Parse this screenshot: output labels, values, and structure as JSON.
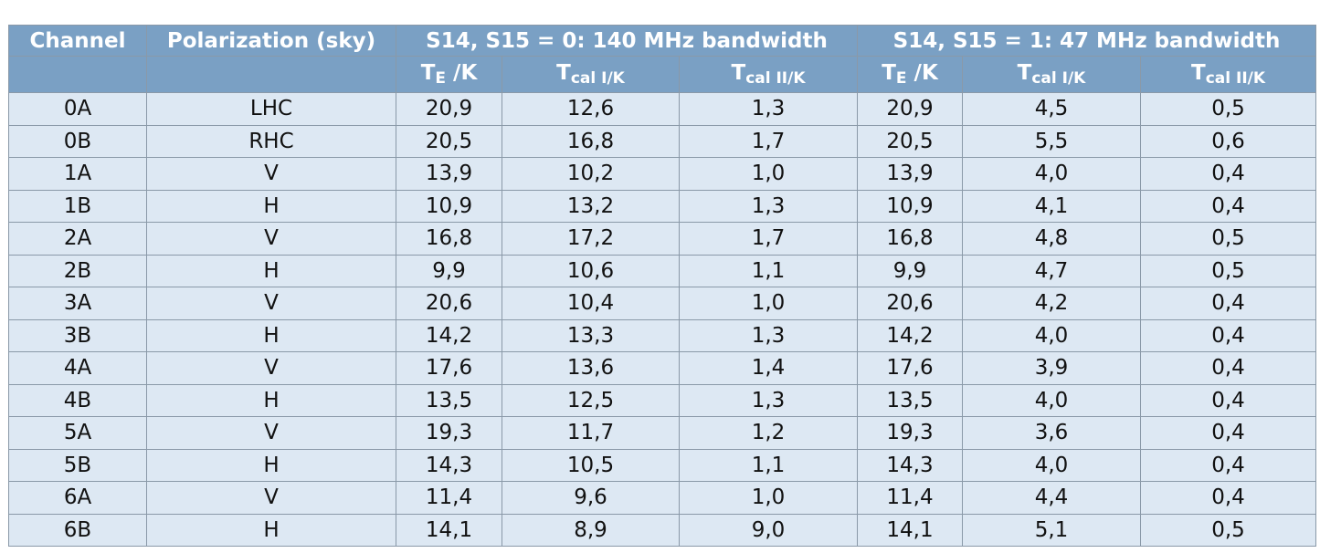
{
  "table": {
    "header": [
      "Channel",
      "Polarization (sky)",
      "S14, S15 = 0: 140 MHz bandwidth",
      "S14, S15 = 1: 47 MHz bandwidth"
    ],
    "subheader": [
      {
        "base": "T",
        "sub": "E",
        "suffix": " /K"
      },
      {
        "base": "T",
        "sub": "cal I/K"
      },
      {
        "base": "T",
        "sub": "cal II/K"
      },
      {
        "base": "T",
        "sub": "E",
        "suffix": " /K"
      },
      {
        "base": "T",
        "sub": "cal I/K"
      },
      {
        "base": "T",
        "sub": "cal II/K"
      }
    ],
    "rows": [
      [
        "0A",
        "LHC",
        "20,9",
        "12,6",
        "1,3",
        "20,9",
        "4,5",
        "0,5"
      ],
      [
        "0B",
        "RHC",
        "20,5",
        "16,8",
        "1,7",
        "20,5",
        "5,5",
        "0,6"
      ],
      [
        "1A",
        "V",
        "13,9",
        "10,2",
        "1,0",
        "13,9",
        "4,0",
        "0,4"
      ],
      [
        "1B",
        "H",
        "10,9",
        "13,2",
        "1,3",
        "10,9",
        "4,1",
        "0,4"
      ],
      [
        "2A",
        "V",
        "16,8",
        "17,2",
        "1,7",
        "16,8",
        "4,8",
        "0,5"
      ],
      [
        "2B",
        "H",
        "9,9",
        "10,6",
        "1,1",
        "9,9",
        "4,7",
        "0,5"
      ],
      [
        "3A",
        "V",
        "20,6",
        "10,4",
        "1,0",
        "20,6",
        "4,2",
        "0,4"
      ],
      [
        "3B",
        "H",
        "14,2",
        "13,3",
        "1,3",
        "14,2",
        "4,0",
        "0,4"
      ],
      [
        "4A",
        "V",
        "17,6",
        "13,6",
        "1,4",
        "17,6",
        "3,9",
        "0,4"
      ],
      [
        "4B",
        "H",
        "13,5",
        "12,5",
        "1,3",
        "13,5",
        "4,0",
        "0,4"
      ],
      [
        "5A",
        "V",
        "19,3",
        "11,7",
        "1,2",
        "19,3",
        "3,6",
        "0,4"
      ],
      [
        "5B",
        "H",
        "14,3",
        "10,5",
        "1,1",
        "14,3",
        "4,0",
        "0,4"
      ],
      [
        "6A",
        "V",
        "11,4",
        "9,6",
        "1,0",
        "11,4",
        "4,4",
        "0,4"
      ],
      [
        "6B",
        "H",
        "14,1",
        "8,9",
        "9,0",
        "14,1",
        "5,1",
        "0,5"
      ]
    ]
  }
}
